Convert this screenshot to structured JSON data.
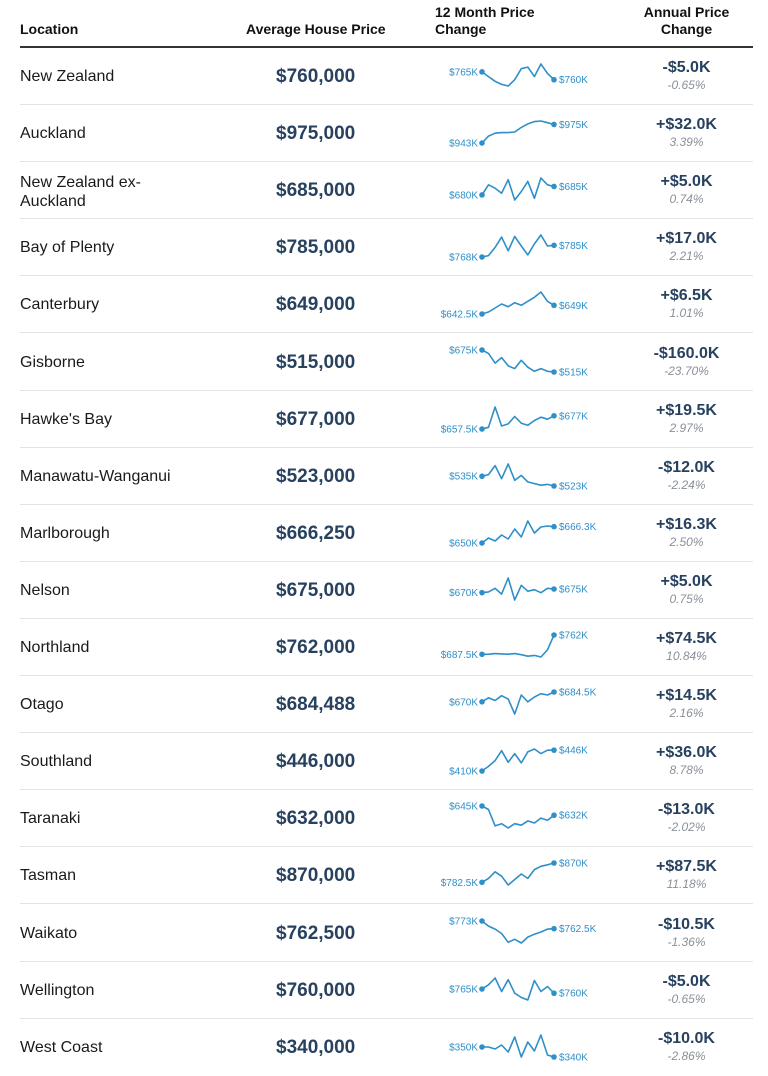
{
  "header": {
    "location": "Location",
    "avg_price": "Average House Price",
    "trend": "12 Month Price Change",
    "annual": "Annual Price Change"
  },
  "colors": {
    "price": "#27415f",
    "spark": "#2e8fc9",
    "pct": "#8a9098"
  },
  "chart_data": {
    "type": "table",
    "columns": [
      "Location",
      "Average House Price",
      "12 Month Price Change",
      "Annual Price Change"
    ],
    "rows": [
      {
        "location": "New Zealand",
        "price": "$760,000",
        "start": "$765K",
        "end": "$760K",
        "change": "-$5.0K",
        "pct": "-0.65%",
        "trend": [
          765,
          762,
          759,
          757,
          756,
          760,
          767,
          768,
          762,
          770,
          764,
          760
        ]
      },
      {
        "location": "Auckland",
        "price": "$975,000",
        "start": "$943K",
        "end": "$975K",
        "change": "+$32.0K",
        "pct": "3.39%",
        "trend": [
          943,
          955,
          960,
          961,
          961,
          962,
          970,
          976,
          980,
          981,
          978,
          975
        ]
      },
      {
        "location": "New Zealand ex-Auckland",
        "price": "$685,000",
        "start": "$680K",
        "end": "$685K",
        "change": "+$5.0K",
        "pct": "0.74%",
        "trend": [
          680,
          686,
          684,
          681,
          689,
          677,
          682,
          688,
          678,
          690,
          686,
          685
        ]
      },
      {
        "location": "Bay of Plenty",
        "price": "$785,000",
        "start": "$768K",
        "end": "$785K",
        "change": "+$17.0K",
        "pct": "2.21%",
        "trend": [
          768,
          770,
          782,
          797,
          777,
          798,
          784,
          771,
          787,
          800,
          784,
          785
        ]
      },
      {
        "location": "Canterbury",
        "price": "$649,000",
        "start": "$642.5K",
        "end": "$649K",
        "change": "+$6.5K",
        "pct": "1.01%",
        "trend": [
          642.5,
          644,
          647,
          650,
          648,
          651,
          649,
          652,
          655,
          659,
          652,
          649
        ]
      },
      {
        "location": "Gisborne",
        "price": "$515,000",
        "start": "$675K",
        "end": "$515K",
        "change": "-$160.0K",
        "pct": "-23.70%",
        "trend": [
          675,
          650,
          580,
          620,
          560,
          540,
          600,
          550,
          520,
          540,
          520,
          515
        ]
      },
      {
        "location": "Hawke's Bay",
        "price": "$677,000",
        "start": "$657.5K",
        "end": "$677K",
        "change": "+$19.5K",
        "pct": "2.97%",
        "trend": [
          657.5,
          660,
          690,
          662,
          665,
          676,
          666,
          663,
          670,
          675,
          672,
          677
        ]
      },
      {
        "location": "Manawatu-Wanganui",
        "price": "$523,000",
        "start": "$535K",
        "end": "$523K",
        "change": "-$12.0K",
        "pct": "-2.24%",
        "trend": [
          535,
          537,
          548,
          532,
          550,
          530,
          536,
          528,
          526,
          524,
          525,
          523
        ]
      },
      {
        "location": "Marlborough",
        "price": "$666,250",
        "start": "$650K",
        "end": "$666.3K",
        "change": "+$16.3K",
        "pct": "2.50%",
        "trend": [
          650,
          655,
          652,
          658,
          654,
          664,
          656,
          672,
          660,
          666,
          667,
          666.3
        ]
      },
      {
        "location": "Nelson",
        "price": "$675,000",
        "start": "$670K",
        "end": "$675K",
        "change": "+$5.0K",
        "pct": "0.75%",
        "trend": [
          670,
          671,
          676,
          668,
          690,
          660,
          680,
          672,
          674,
          670,
          676,
          675
        ]
      },
      {
        "location": "Northland",
        "price": "$762,000",
        "start": "$687.5K",
        "end": "$762K",
        "change": "+$74.5K",
        "pct": "10.84%",
        "trend": [
          687.5,
          688,
          690,
          689,
          688,
          690,
          686,
          680,
          683,
          677,
          705,
          762
        ]
      },
      {
        "location": "Otago",
        "price": "$684,488",
        "start": "$670K",
        "end": "$684.5K",
        "change": "+$14.5K",
        "pct": "2.16%",
        "trend": [
          670,
          676,
          672,
          679,
          674,
          652,
          680,
          670,
          677,
          682,
          680,
          684.5
        ]
      },
      {
        "location": "Southland",
        "price": "$446,000",
        "start": "$410K",
        "end": "$446K",
        "change": "+$36.0K",
        "pct": "8.78%",
        "trend": [
          410,
          418,
          428,
          445,
          425,
          440,
          424,
          443,
          448,
          440,
          446,
          446
        ]
      },
      {
        "location": "Taranaki",
        "price": "$632,000",
        "start": "$645K",
        "end": "$632K",
        "change": "-$13.0K",
        "pct": "-2.02%",
        "trend": [
          645,
          640,
          617,
          620,
          614,
          620,
          618,
          624,
          621,
          628,
          625,
          632
        ]
      },
      {
        "location": "Tasman",
        "price": "$870,000",
        "start": "$782.5K",
        "end": "$870K",
        "change": "+$87.5K",
        "pct": "11.18%",
        "trend": [
          782.5,
          800,
          830,
          810,
          770,
          795,
          820,
          800,
          840,
          855,
          862,
          870
        ]
      },
      {
        "location": "Waikato",
        "price": "$762,500",
        "start": "$773K",
        "end": "$762.5K",
        "change": "-$10.5K",
        "pct": "-1.36%",
        "trend": [
          773,
          766,
          762,
          756,
          744,
          748,
          743,
          751,
          755,
          758,
          762,
          762.5
        ]
      },
      {
        "location": "Wellington",
        "price": "$760,000",
        "start": "$765K",
        "end": "$760K",
        "change": "-$5.0K",
        "pct": "-0.65%",
        "trend": [
          765,
          770,
          778,
          762,
          776,
          760,
          755,
          752,
          775,
          762,
          768,
          760
        ]
      },
      {
        "location": "West Coast",
        "price": "$340,000",
        "start": "$350K",
        "end": "$340K",
        "change": "-$10.0K",
        "pct": "-2.86%",
        "trend": [
          350,
          350,
          348,
          352,
          345,
          360,
          340,
          355,
          346,
          362,
          342,
          340
        ]
      }
    ]
  }
}
